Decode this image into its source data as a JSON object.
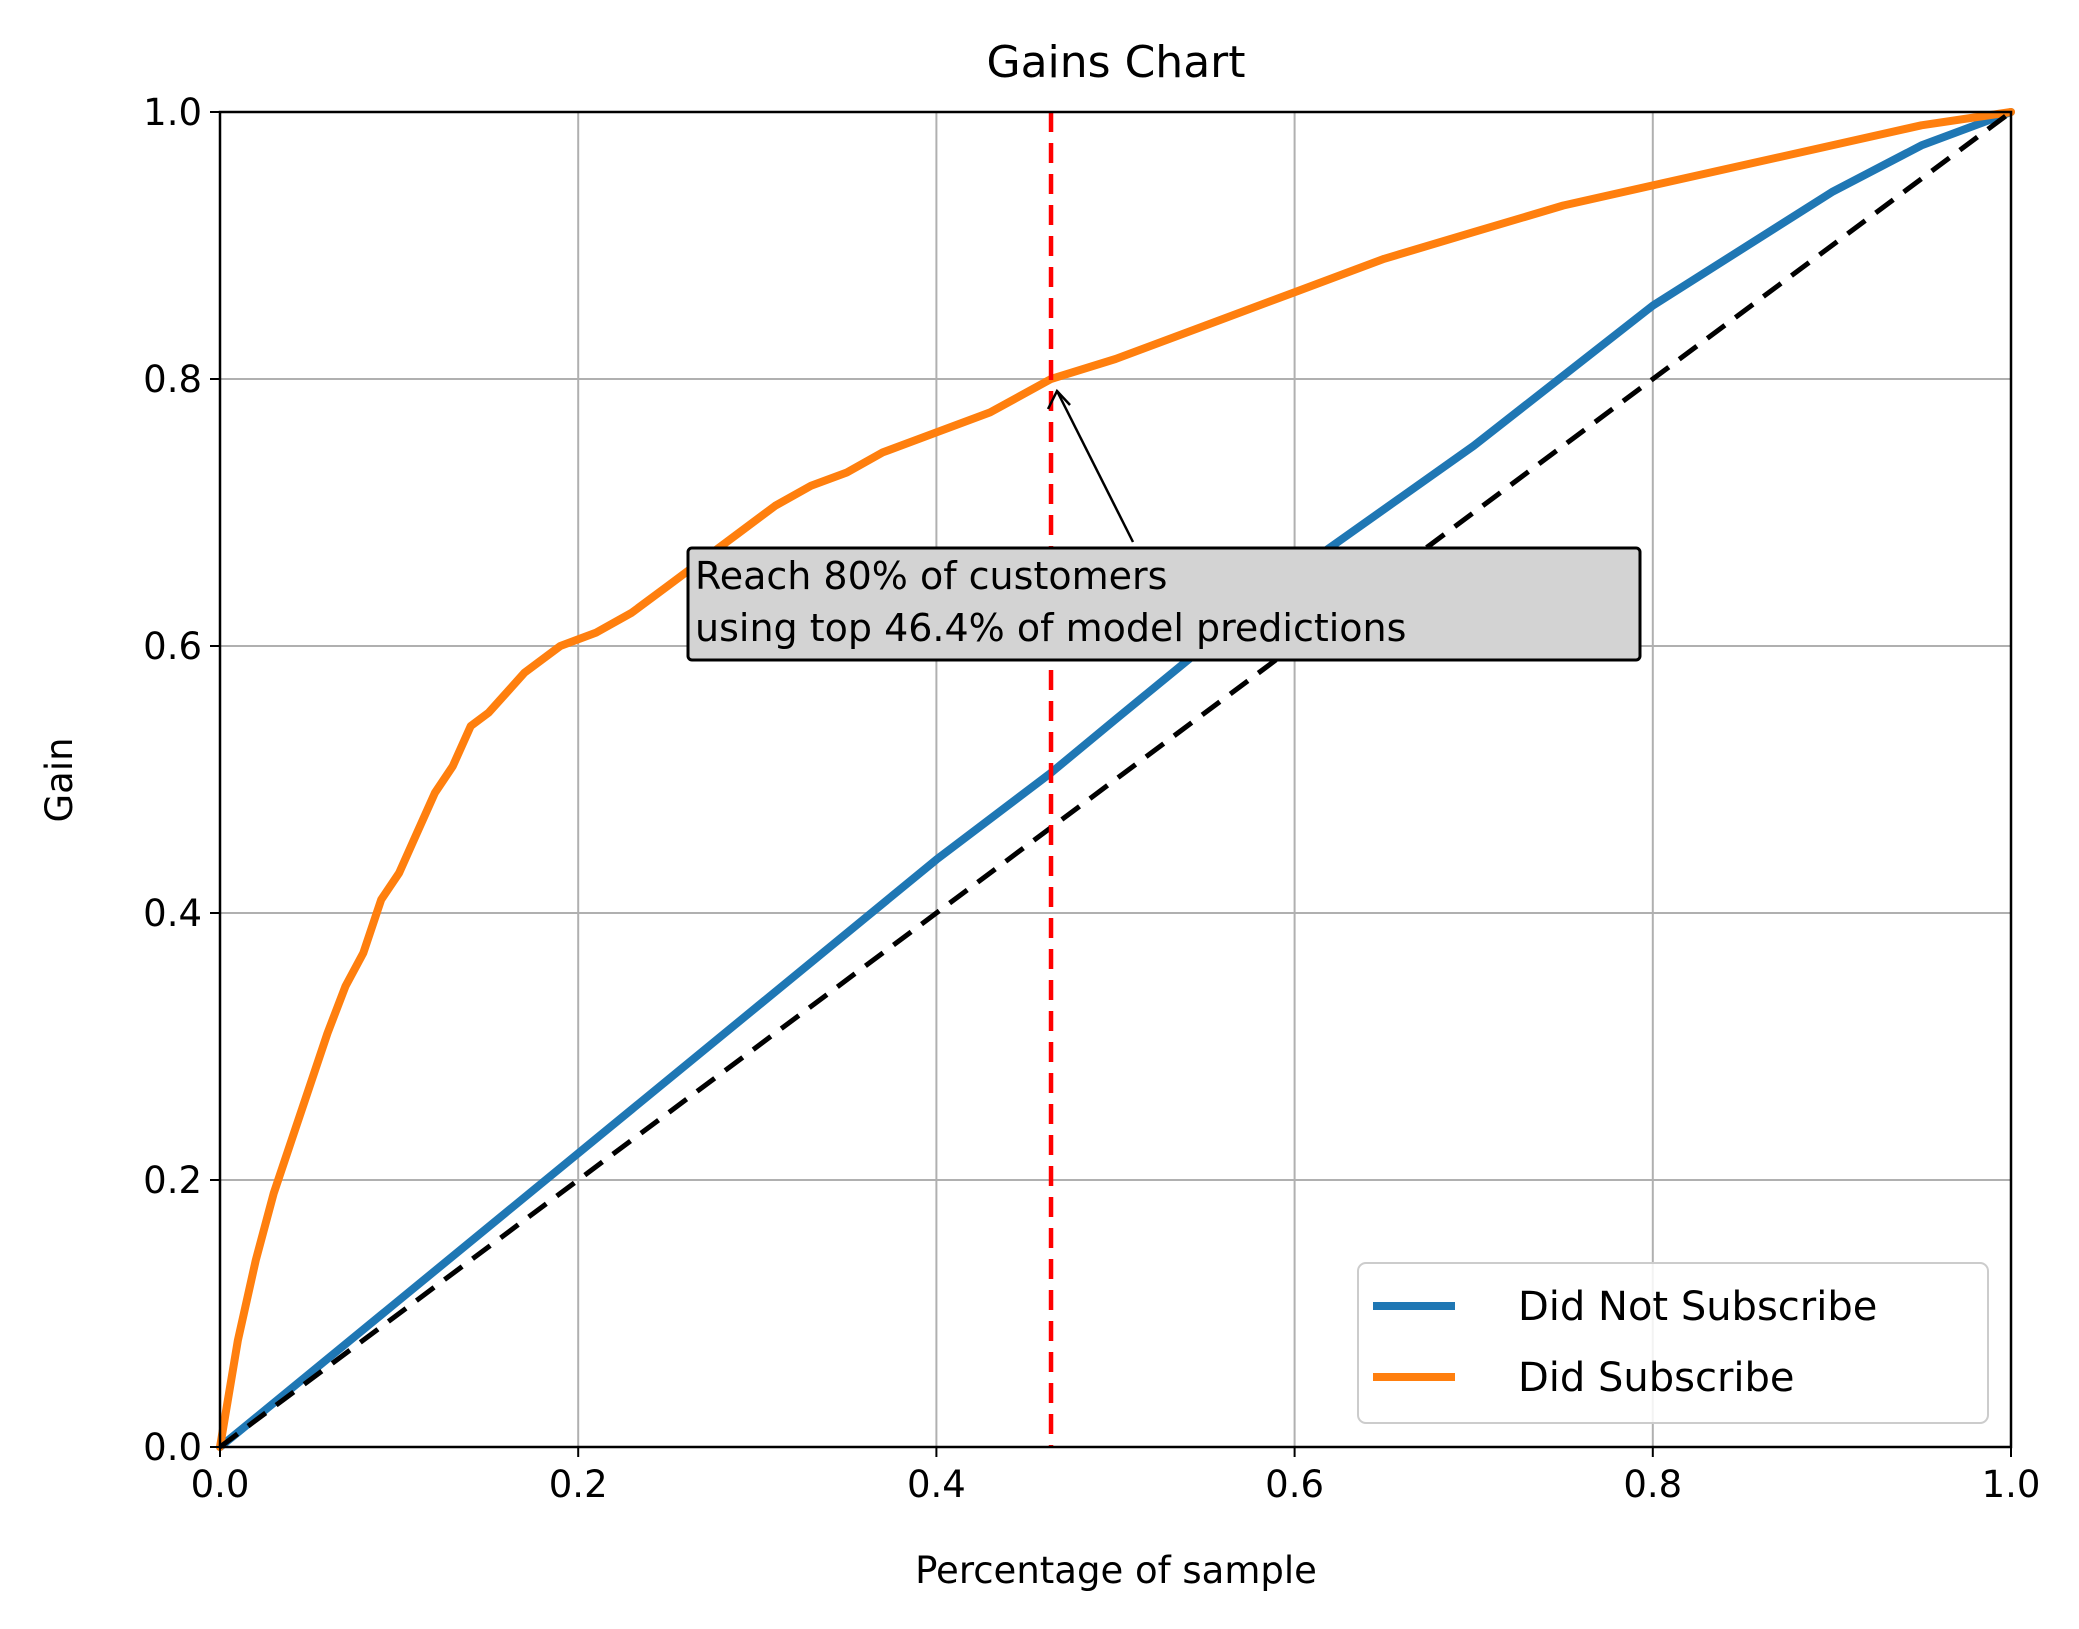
{
  "chart_data": {
    "type": "line",
    "title": "Gains Chart",
    "xlabel": "Percentage of sample",
    "ylabel": "Gain",
    "xlim": [
      0.0,
      1.0
    ],
    "ylim": [
      0.0,
      1.0
    ],
    "xticks": [
      "0.0",
      "0.2",
      "0.4",
      "0.6",
      "0.8",
      "1.0"
    ],
    "yticks": [
      "0.0",
      "0.2",
      "0.4",
      "0.6",
      "0.8",
      "1.0"
    ],
    "grid": true,
    "legend_position": "lower right",
    "series": [
      {
        "name": "Did Not Subscribe",
        "color": "#1f77b4",
        "x": [
          0.0,
          0.1,
          0.2,
          0.3,
          0.4,
          0.464,
          0.5,
          0.6,
          0.7,
          0.8,
          0.9,
          0.95,
          1.0
        ],
        "y": [
          0.0,
          0.11,
          0.22,
          0.33,
          0.44,
          0.505,
          0.545,
          0.655,
          0.75,
          0.855,
          0.94,
          0.975,
          1.0
        ]
      },
      {
        "name": "Did Subscribe",
        "color": "#ff7f0e",
        "x": [
          0.0,
          0.01,
          0.02,
          0.03,
          0.04,
          0.05,
          0.06,
          0.07,
          0.08,
          0.09,
          0.1,
          0.11,
          0.12,
          0.13,
          0.14,
          0.15,
          0.17,
          0.19,
          0.21,
          0.23,
          0.25,
          0.27,
          0.29,
          0.31,
          0.33,
          0.35,
          0.37,
          0.4,
          0.43,
          0.464,
          0.5,
          0.55,
          0.6,
          0.65,
          0.7,
          0.75,
          0.8,
          0.85,
          0.9,
          0.95,
          1.0
        ],
        "y": [
          0.0,
          0.08,
          0.14,
          0.19,
          0.23,
          0.27,
          0.31,
          0.345,
          0.37,
          0.41,
          0.43,
          0.46,
          0.49,
          0.51,
          0.54,
          0.55,
          0.58,
          0.6,
          0.61,
          0.625,
          0.645,
          0.665,
          0.685,
          0.705,
          0.72,
          0.73,
          0.745,
          0.76,
          0.775,
          0.8,
          0.815,
          0.84,
          0.865,
          0.89,
          0.91,
          0.93,
          0.945,
          0.96,
          0.975,
          0.99,
          1.0
        ]
      },
      {
        "name": "",
        "role": "baseline",
        "color": "#000000",
        "dash": "dashed",
        "x": [
          0.0,
          1.0
        ],
        "y": [
          0.0,
          1.0
        ]
      }
    ],
    "vline": {
      "x": 0.464,
      "color": "#ff0000",
      "dash": "dashed"
    },
    "annotation": {
      "lines": [
        "Reach 80% of customers",
        "using top 46.4% of model predictions"
      ],
      "point": [
        0.464,
        0.8
      ],
      "box_color": "#d3d3d3"
    }
  }
}
